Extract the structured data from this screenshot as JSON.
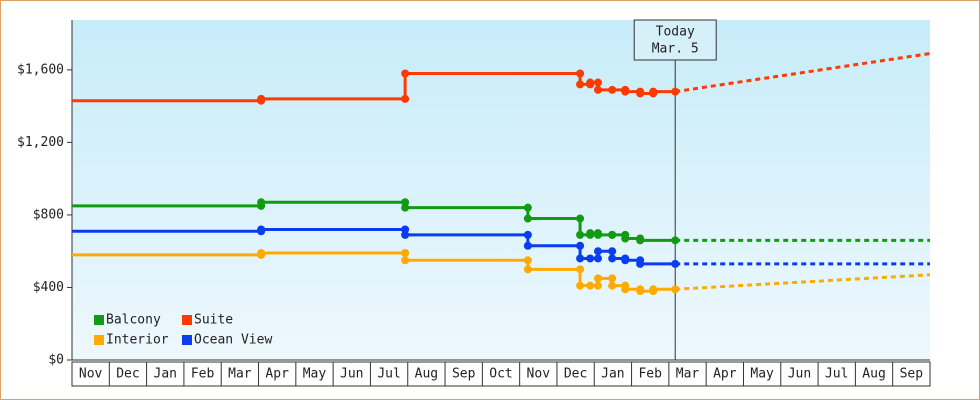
{
  "chart_data": {
    "type": "step-line",
    "xlim": [
      0,
      23
    ],
    "ylim": [
      0,
      1875
    ],
    "categories": [
      "Nov",
      "Dec",
      "Jan",
      "Feb",
      "Mar",
      "Apr",
      "May",
      "Jun",
      "Jul",
      "Aug",
      "Sep",
      "Oct",
      "Nov",
      "Dec",
      "Jan",
      "Feb",
      "Mar",
      "Apr",
      "May",
      "Jun",
      "Jul",
      "Aug",
      "Sep"
    ],
    "yticks": [
      {
        "value": 0,
        "label": "$0"
      },
      {
        "value": 400,
        "label": "$400"
      },
      {
        "value": 800,
        "label": "$800"
      },
      {
        "value": 1200,
        "label": "$1,200"
      },
      {
        "value": 1600,
        "label": "$1,600"
      }
    ],
    "annotation": {
      "x": 16.17,
      "lines": [
        "Today",
        "Mar. 5"
      ]
    },
    "series": [
      {
        "name": "Balcony",
        "color": "#139a13",
        "x": [
          0,
          5.07,
          5.07,
          8.93,
          8.93,
          12.22,
          12.22,
          13.62,
          13.62,
          13.89,
          13.89,
          14.1,
          14.1,
          14.48,
          14.48,
          14.83,
          14.83,
          15.23,
          15.23,
          16.17
        ],
        "values": [
          850,
          850,
          870,
          870,
          840,
          840,
          780,
          780,
          690,
          690,
          700,
          700,
          690,
          690,
          690,
          690,
          670,
          670,
          660,
          660
        ],
        "projection": {
          "x": [
            16.17,
            23
          ],
          "values": [
            660,
            660
          ]
        }
      },
      {
        "name": "Suite",
        "color": "#ff3a00",
        "x": [
          0,
          5.07,
          5.07,
          8.93,
          8.93,
          13.62,
          13.62,
          13.89,
          13.89,
          14.1,
          14.1,
          14.48,
          14.83,
          14.83,
          15.23,
          15.23,
          15.58,
          15.58,
          16.17
        ],
        "values": [
          1430,
          1430,
          1440,
          1440,
          1580,
          1580,
          1520,
          1520,
          1530,
          1530,
          1490,
          1490,
          1490,
          1480,
          1480,
          1470,
          1470,
          1480,
          1480
        ],
        "projection": {
          "x": [
            16.17,
            23
          ],
          "values": [
            1480,
            1690
          ]
        }
      },
      {
        "name": "Interior",
        "color": "#ffaa00",
        "x": [
          0,
          5.07,
          5.07,
          8.93,
          8.93,
          12.22,
          12.22,
          13.62,
          13.62,
          13.89,
          14.1,
          14.1,
          14.48,
          14.48,
          14.83,
          14.83,
          15.23,
          15.23,
          15.58,
          15.58,
          16.17
        ],
        "values": [
          580,
          580,
          590,
          590,
          550,
          550,
          500,
          500,
          410,
          410,
          410,
          450,
          450,
          410,
          410,
          390,
          390,
          380,
          380,
          390,
          390
        ],
        "projection": {
          "x": [
            16.17,
            23
          ],
          "values": [
            390,
            470
          ]
        }
      },
      {
        "name": "Ocean View",
        "color": "#0a3cf0",
        "x": [
          0,
          5.07,
          5.07,
          8.93,
          8.93,
          12.22,
          12.22,
          13.62,
          13.62,
          13.89,
          14.1,
          14.1,
          14.48,
          14.48,
          14.83,
          14.83,
          15.23,
          15.23,
          16.17
        ],
        "values": [
          710,
          710,
          720,
          720,
          690,
          690,
          630,
          630,
          560,
          560,
          560,
          600,
          600,
          560,
          560,
          550,
          550,
          530,
          530
        ],
        "projection": {
          "x": [
            16.17,
            23
          ],
          "values": [
            530,
            530
          ]
        }
      }
    ]
  }
}
